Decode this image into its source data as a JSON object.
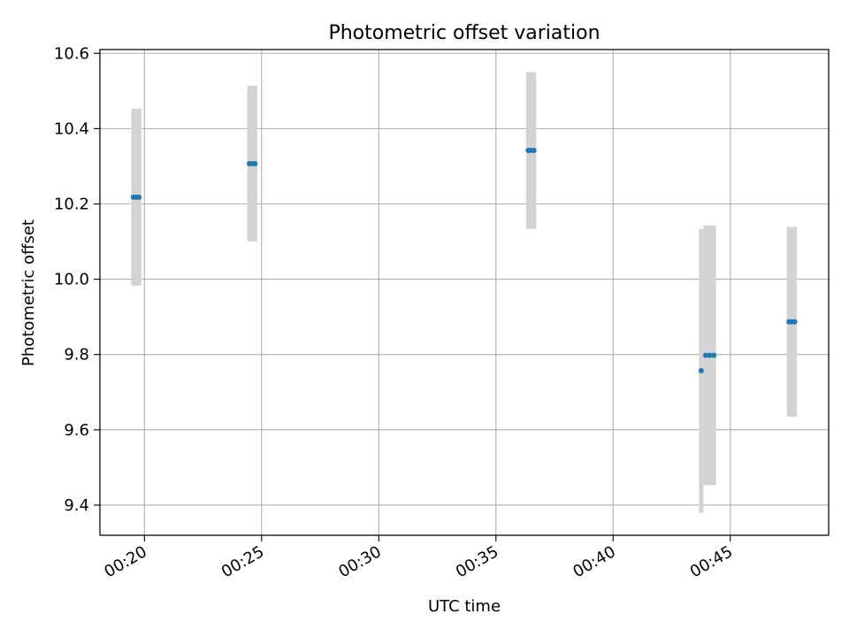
{
  "chart_data": {
    "type": "scatter",
    "title": "Photometric offset variation",
    "xlabel": "UTC time",
    "ylabel": "Photometric offset",
    "x_ticks": [
      "00:20",
      "00:25",
      "00:30",
      "00:35",
      "00:40",
      "00:45"
    ],
    "x_tick_minutes": [
      20,
      25,
      30,
      35,
      40,
      45
    ],
    "y_ticks": [
      "9.4",
      "9.6",
      "9.8",
      "10.0",
      "10.2",
      "10.4",
      "10.6"
    ],
    "y_tick_values": [
      9.4,
      9.6,
      9.8,
      10.0,
      10.2,
      10.4,
      10.6
    ],
    "xlim_minutes": [
      18.1,
      49.2
    ],
    "ylim": [
      9.32,
      10.61
    ],
    "grid": true,
    "point_color": "#1f77b4",
    "errorbar_color": "#d3d3d3",
    "series": [
      {
        "points": [
          {
            "t": 19.53,
            "y": 10.218,
            "err": 0.235
          },
          {
            "t": 19.65,
            "y": 10.218,
            "err": 0.235
          },
          {
            "t": 19.77,
            "y": 10.218,
            "err": 0.235
          },
          {
            "t": 24.48,
            "y": 10.307,
            "err": 0.207
          },
          {
            "t": 24.6,
            "y": 10.307,
            "err": 0.207
          },
          {
            "t": 24.72,
            "y": 10.307,
            "err": 0.207
          },
          {
            "t": 36.38,
            "y": 10.342,
            "err": 0.208
          },
          {
            "t": 36.5,
            "y": 10.342,
            "err": 0.208
          },
          {
            "t": 36.62,
            "y": 10.342,
            "err": 0.208
          },
          {
            "t": 43.76,
            "y": 9.757,
            "err": 0.377
          },
          {
            "t": 43.95,
            "y": 9.798,
            "err": 0.345
          },
          {
            "t": 44.12,
            "y": 9.798,
            "err": 0.345
          },
          {
            "t": 44.3,
            "y": 9.798,
            "err": 0.345
          },
          {
            "t": 47.51,
            "y": 9.887,
            "err": 0.252
          },
          {
            "t": 47.63,
            "y": 9.887,
            "err": 0.252
          },
          {
            "t": 47.75,
            "y": 9.887,
            "err": 0.252
          }
        ]
      }
    ]
  }
}
